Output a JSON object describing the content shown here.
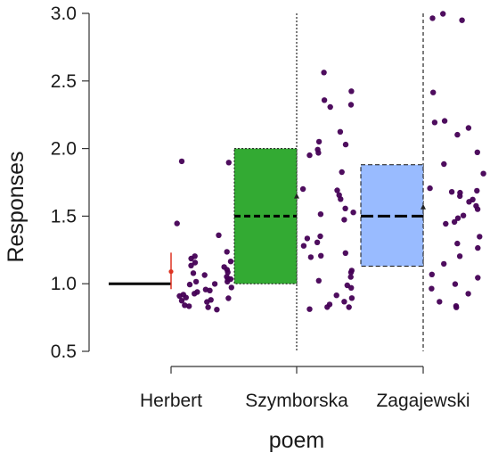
{
  "chart_data": {
    "type": "scatter",
    "xlabel": "poem",
    "ylabel": "Responses",
    "ylim": [
      0.5,
      3.0
    ],
    "yticks": [
      "0.5",
      "1.0",
      "1.5",
      "2.0",
      "2.5",
      "3.0"
    ],
    "categories": [
      "Herbert",
      "Szymborska",
      "Zagajewski"
    ],
    "grid": false,
    "summaries": [
      {
        "category": "Herbert",
        "median": 1.0,
        "q1": 1.0,
        "q3": 1.0,
        "mean": 1.09,
        "ci_low": 0.96,
        "ci_high": 1.23,
        "fill": "#000000",
        "line_style": "solid"
      },
      {
        "category": "Szymborska",
        "median": 1.5,
        "q1": 1.0,
        "q3": 2.0,
        "mean": 1.65,
        "fill": "#33AA33",
        "line_style": "dotted"
      },
      {
        "category": "Zagajewski",
        "median": 1.5,
        "q1": 1.13,
        "q3": 1.88,
        "mean": 1.57,
        "fill": "#99BBFF",
        "line_style": "dashed"
      }
    ],
    "mean_color": "#DD3322",
    "point_color": "#440055",
    "points": [
      {
        "category": "Herbert",
        "values": [
          1.91,
          1.89,
          1.44,
          1.36,
          1.24,
          1.2,
          1.19,
          1.16,
          1.15,
          1.13,
          1.12,
          1.1,
          1.09,
          1.08,
          1.06,
          1.05,
          1.04,
          1.03,
          1.02,
          1.01,
          1.0,
          0.99,
          0.97,
          0.96,
          0.95,
          0.94,
          0.93,
          0.92,
          0.91,
          0.9,
          0.89,
          0.88,
          0.87,
          0.86,
          0.84,
          0.83,
          0.82,
          0.81
        ]
      },
      {
        "category": "Szymborska",
        "values": [
          2.56,
          2.42,
          2.36,
          2.33,
          2.31,
          2.12,
          2.05,
          2.03,
          1.99,
          1.97,
          1.95,
          1.82,
          1.7,
          1.69,
          1.65,
          1.62,
          1.56,
          1.53,
          1.51,
          1.48,
          1.35,
          1.33,
          1.31,
          1.28,
          1.23,
          1.21,
          1.19,
          1.1,
          1.08,
          1.05,
          1.02,
          0.99,
          0.97,
          0.92,
          0.89,
          0.87,
          0.85,
          0.83,
          0.82,
          0.81
        ]
      },
      {
        "category": "Zagajewski",
        "values": [
          3.0,
          2.97,
          2.95,
          2.41,
          2.2,
          2.19,
          2.15,
          2.1,
          1.97,
          1.88,
          1.82,
          1.71,
          1.69,
          1.68,
          1.67,
          1.65,
          1.62,
          1.6,
          1.58,
          1.55,
          1.5,
          1.49,
          1.46,
          1.44,
          1.35,
          1.3,
          1.26,
          1.2,
          1.15,
          1.07,
          1.04,
          1.0,
          0.97,
          0.93,
          0.86,
          0.84,
          0.83
        ]
      }
    ]
  }
}
